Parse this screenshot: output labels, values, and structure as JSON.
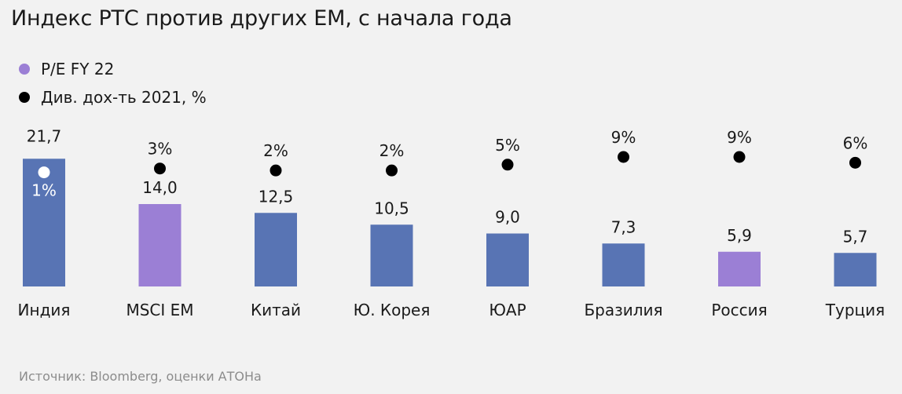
{
  "title": "Индекс РТС против других EM, с начала года",
  "source": "Источник: Bloomberg, оценки АТОНа",
  "colors": {
    "bar_default": "#5874b4",
    "bar_highlight": "#9b7fd5",
    "dot": "#000000",
    "dot_on_bar": "#ffffff",
    "background": "#f2f2f2"
  },
  "chart_data": {
    "type": "bar",
    "title": "Индекс РТС против других EM, с начала года",
    "legend_position": "top-left",
    "grid": false,
    "categories": [
      "Индия",
      "MSCI EM",
      "Китай",
      "Ю. Корея",
      "ЮАР",
      "Бразилия",
      "Россия",
      "Турция"
    ],
    "series": [
      {
        "name": "P/E FY 22",
        "kind": "bar",
        "values": [
          21.7,
          14.0,
          12.5,
          10.5,
          9.0,
          7.3,
          5.9,
          5.7
        ],
        "labels": [
          "21,7",
          "14,0",
          "12,5",
          "10,5",
          "9,0",
          "7,3",
          "5,9",
          "5,7"
        ],
        "highlight": [
          false,
          true,
          false,
          false,
          false,
          false,
          true,
          false
        ]
      },
      {
        "name": "Див. дох-ть 2021, %",
        "kind": "dot",
        "values": [
          1,
          3,
          2,
          2,
          5,
          9,
          9,
          6
        ],
        "labels": [
          "1%",
          "3%",
          "2%",
          "2%",
          "5%",
          "9%",
          "9%",
          "6%"
        ]
      }
    ],
    "legend": [
      {
        "label": "P/E FY 22",
        "color": "#9b7fd5"
      },
      {
        "label": "Див. дох-ть 2021, %",
        "color": "#000000"
      }
    ]
  }
}
